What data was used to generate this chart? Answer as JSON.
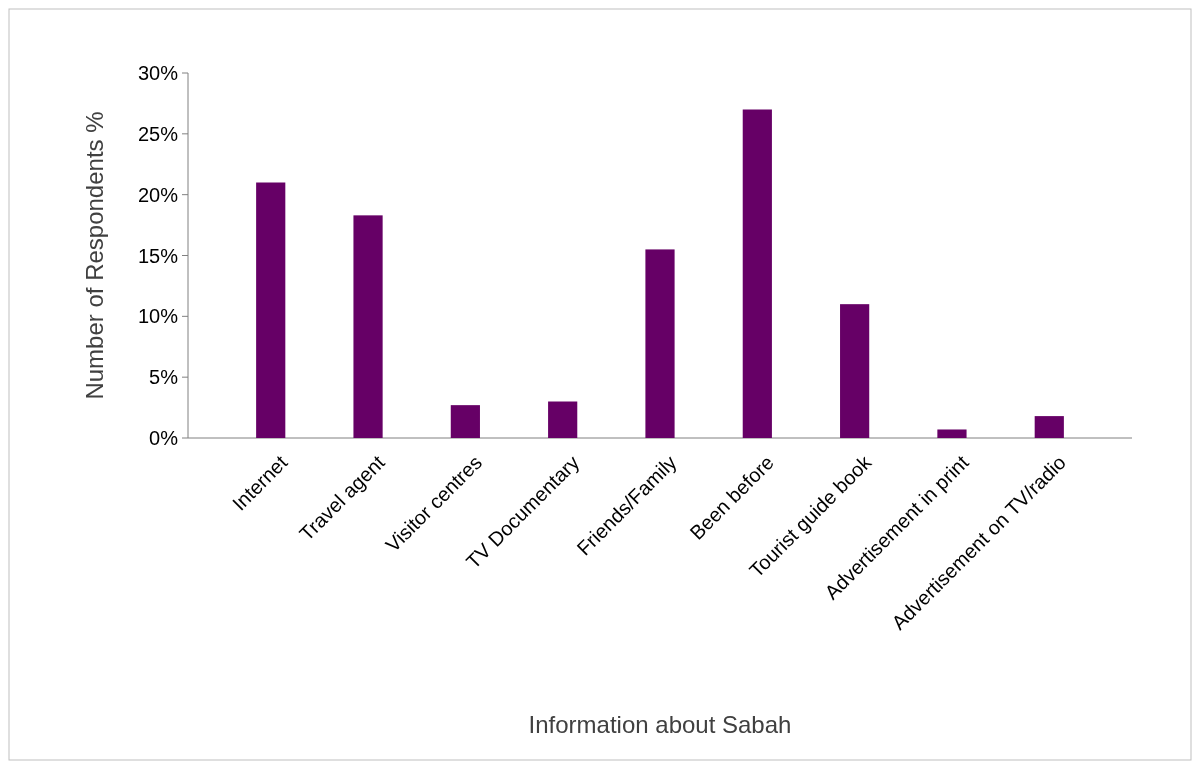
{
  "chart_data": {
    "type": "bar",
    "xlabel": "Information about Sabah",
    "ylabel": "Number of Respondents %",
    "categories": [
      "Internet",
      "Travel agent",
      "Visitor centres",
      "TV Documentary",
      "Friends/Family",
      "Been before",
      "Tourist guide book",
      "Advertisement in print",
      "Advertisement on TV/radio"
    ],
    "values": [
      21,
      18.3,
      2.7,
      3,
      15.5,
      27,
      11,
      0.7,
      1.8
    ],
    "color": "#660066",
    "ylim": [
      0,
      30
    ],
    "yticks": [
      {
        "value": 0,
        "label": "0%"
      },
      {
        "value": 5,
        "label": "5%"
      },
      {
        "value": 10,
        "label": "10%"
      },
      {
        "value": 15,
        "label": "15%"
      },
      {
        "value": 20,
        "label": "20%"
      },
      {
        "value": 25,
        "label": "25%"
      },
      {
        "value": 30,
        "label": "30%"
      }
    ],
    "grid": false
  }
}
